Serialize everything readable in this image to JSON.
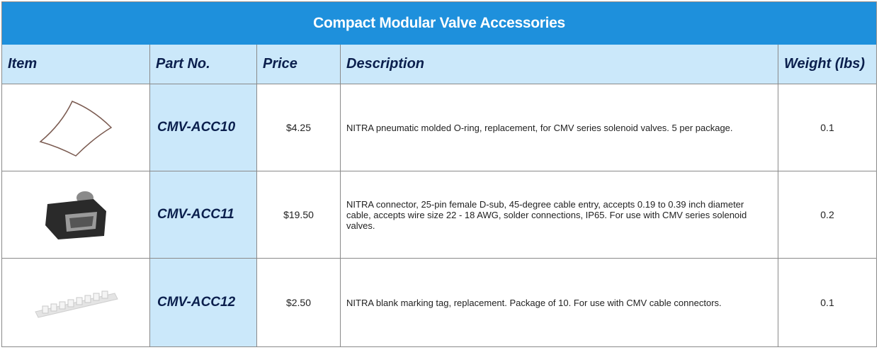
{
  "table": {
    "title": "Compact Modular Valve Accessories",
    "columns": [
      "Item",
      "Part No.",
      "Price",
      "Description",
      "Weight (lbs)"
    ],
    "rows": [
      {
        "part_no": "CMV-ACC10",
        "price": "$4.25",
        "description": "NITRA pneumatic molded O-ring, replacement, for CMV series solenoid valves. 5 per package.",
        "weight": "0.1"
      },
      {
        "part_no": "CMV-ACC11",
        "price": "$19.50",
        "description": "NITRA connector, 25-pin female D-sub, 45-degree cable entry, accepts 0.19 to 0.39 inch diameter cable, accepts wire size 22 - 18 AWG, solder connections, IP65. For use with CMV series solenoid valves.",
        "weight": "0.2"
      },
      {
        "part_no": "CMV-ACC12",
        "price": "$2.50",
        "description": "NITRA blank marking tag, replacement. Package of 10. For use with CMV cable connectors.",
        "weight": "0.1"
      }
    ]
  }
}
